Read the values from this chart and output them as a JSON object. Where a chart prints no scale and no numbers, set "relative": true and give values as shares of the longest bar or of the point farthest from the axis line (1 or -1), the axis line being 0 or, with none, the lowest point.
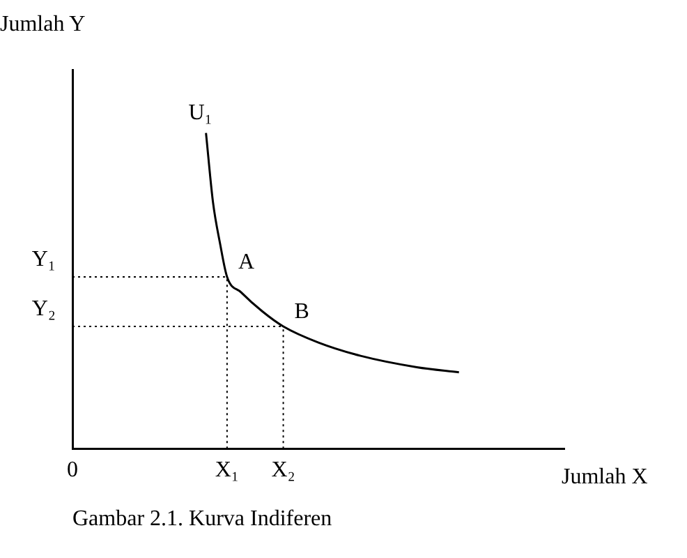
{
  "chart_data": {
    "type": "line",
    "title": "Gambar 2.1. Kurva Indiferen",
    "xlabel": "Jumlah X",
    "ylabel": "Jumlah Y",
    "relative": true,
    "categories": [
      "0",
      null,
      null,
      null,
      null,
      null,
      null,
      null,
      null,
      null,
      null,
      null,
      null,
      null,
      null,
      null,
      null,
      null,
      null,
      null,
      null,
      null,
      "X₁",
      null,
      null,
      null,
      null,
      null,
      null,
      null,
      "X₂",
      null,
      null,
      null,
      null,
      null,
      null,
      null,
      null,
      null,
      null,
      null,
      null,
      null,
      null,
      null,
      null,
      null,
      null,
      null,
      null,
      null,
      null,
      null,
      null,
      null,
      null,
      null,
      null,
      null,
      null,
      null,
      null,
      null,
      null,
      null,
      null,
      null,
      null,
      null,
      null
    ],
    "grid": false,
    "legend": false,
    "marker": "none",
    "line_style": "solid",
    "series": [
      {
        "color": "#000000",
        "values": [
          null,
          null,
          null,
          null,
          null,
          null,
          null,
          null,
          null,
          null,
          null,
          null,
          null,
          null,
          null,
          null,
          null,
          null,
          null,
          1,
          0.78,
          0.65,
          0.544,
          null,
          0.495,
          null,
          null,
          0.435,
          null,
          null,
          0.387,
          null,
          null,
          null,
          null,
          0.336,
          null,
          null,
          null,
          null,
          null,
          0.294,
          null,
          null,
          null,
          null,
          null,
          null,
          null,
          0.258,
          null,
          null,
          null,
          null,
          null,
          0.242,
          null,
          null,
          null,
          null,
          null,
          null,
          null,
          null,
          null,
          null,
          null,
          null,
          null,
          null,
          null
        ]
      }
    ],
    "ref_lines": [
      {
        "axis": "y",
        "value": 0.544,
        "label": "Y₁",
        "color": "#000000",
        "line_style": "dotted"
      },
      {
        "axis": "y",
        "value": 0.387,
        "label": "Y₂",
        "color": "#000000",
        "line_style": "dotted"
      },
      {
        "axis": "x",
        "value": "X₁",
        "color": "#000000",
        "line_style": "dotted"
      },
      {
        "axis": "x",
        "value": "X₂",
        "color": "#000000",
        "line_style": "dotted"
      }
    ],
    "annotations": [
      {
        "text": "U₁",
        "y": 1
      },
      {
        "text": "A",
        "x": "X₁",
        "y": 0.544
      },
      {
        "text": "B",
        "x": "X₂",
        "y": 0.387
      }
    ]
  }
}
